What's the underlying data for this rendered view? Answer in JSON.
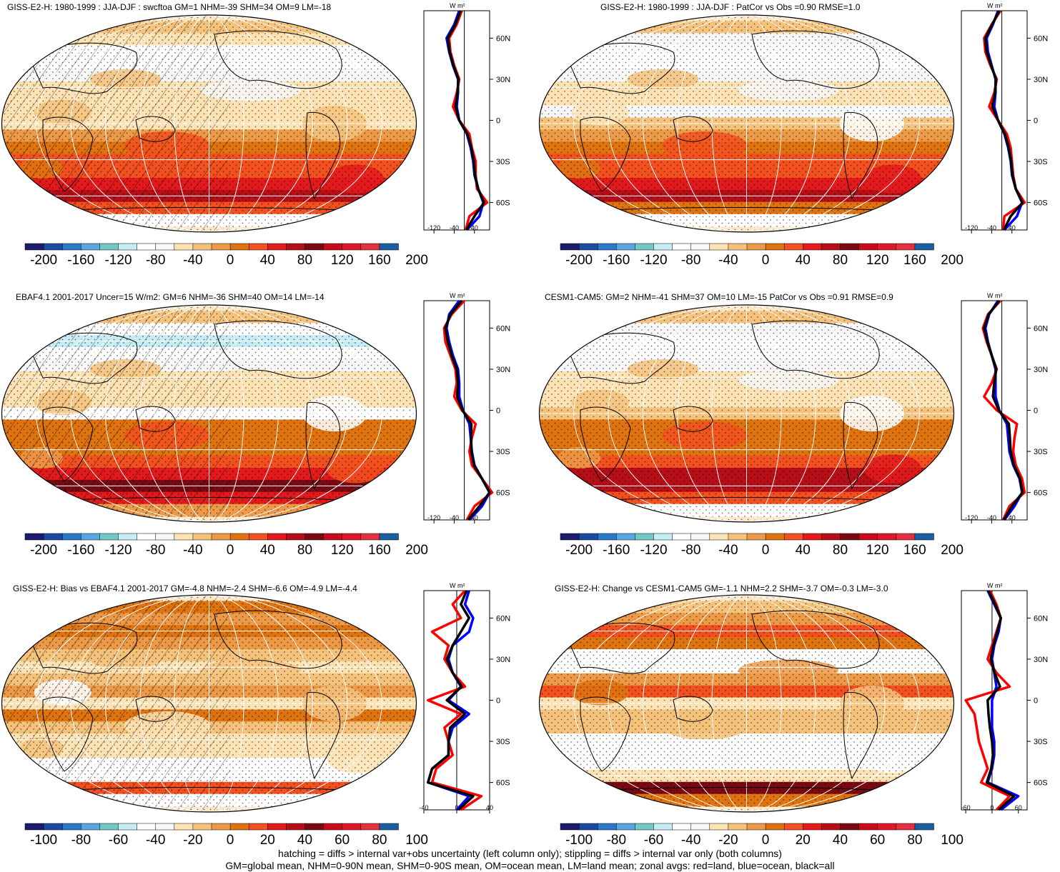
{
  "palette": [
    "#1b1c6b",
    "#1c4aa0",
    "#2a78c8",
    "#5aa7e0",
    "#74c7c2",
    "#c6ecf6",
    "#ffffff",
    "#f7f7f7",
    "#fde3b3",
    "#f5c27c",
    "#ec9a48",
    "#de7310",
    "#f3501f",
    "#e31a1c",
    "#b70f17",
    "#7a0a12",
    "#c80a1a",
    "#e0162b",
    "#e33040",
    "#1a5fa0"
  ],
  "line_colors": {
    "land": "#ff0000",
    "ocean": "#0000ff",
    "all": "#000000"
  },
  "lat_ticks": [
    "60N",
    "30N",
    "0",
    "30S",
    "60S"
  ],
  "zonal_unit": "W m²",
  "panels": [
    {
      "id": "p1",
      "title": "GISS-E2-H: 1980-1999 : JJA-DJF : swcftoa GM=1 NHM=-39 SHM=34 OM=9 LM=-18",
      "colorbar_labels": [
        "-200",
        "-160",
        "-120",
        "-80",
        "-40",
        "0",
        "40",
        "80",
        "120",
        "160",
        "200"
      ],
      "zonal_xticks": [
        "-120",
        "-40",
        "40"
      ],
      "hatching": true,
      "stippling": true,
      "chart_data": {
        "type": "map+zonal",
        "lat": [
          80,
          70,
          60,
          50,
          40,
          30,
          20,
          10,
          0,
          -10,
          -20,
          -30,
          -40,
          -50,
          -60,
          -70,
          -80
        ],
        "series": [
          {
            "name": "land",
            "values": [
              -10,
              -30,
              -60,
              -55,
              -40,
              -20,
              -30,
              -45,
              -20,
              20,
              30,
              45,
              45,
              50,
              90,
              20,
              5
            ]
          },
          {
            "name": "ocean",
            "values": [
              -20,
              -40,
              -70,
              -60,
              -45,
              -25,
              -25,
              -30,
              -20,
              10,
              25,
              35,
              40,
              55,
              75,
              60,
              10
            ]
          },
          {
            "name": "all",
            "values": [
              -15,
              -35,
              -65,
              -58,
              -43,
              -23,
              -27,
              -35,
              -20,
              12,
              28,
              38,
              42,
              55,
              78,
              40,
              8
            ]
          }
        ],
        "xlim": [
          -160,
          100
        ]
      }
    },
    {
      "id": "p2",
      "title": "GISS-E2-H: 1980-1999 : JJA-DJF : PatCor vs Obs =0.90 RMSE=1.0",
      "colorbar_labels": [
        "-200",
        "-160",
        "-120",
        "-80",
        "-40",
        "0",
        "40",
        "80",
        "120",
        "160",
        "200"
      ],
      "zonal_xticks": [
        "-120",
        "-40",
        "40"
      ],
      "hatching": false,
      "stippling": true,
      "chart_data": {
        "type": "map+zonal",
        "lat": [
          80,
          70,
          60,
          50,
          40,
          30,
          20,
          10,
          0,
          -10,
          -20,
          -30,
          -40,
          -50,
          -60,
          -70,
          -80
        ],
        "series": [
          {
            "name": "land",
            "values": [
              -5,
              -40,
              -70,
              -65,
              -45,
              -20,
              -30,
              -50,
              -15,
              20,
              35,
              40,
              45,
              55,
              90,
              10,
              5
            ]
          },
          {
            "name": "ocean",
            "values": [
              -15,
              -35,
              -60,
              -55,
              -40,
              -25,
              -25,
              -30,
              -15,
              10,
              25,
              35,
              40,
              55,
              80,
              60,
              10
            ]
          },
          {
            "name": "all",
            "values": [
              -10,
              -38,
              -65,
              -60,
              -42,
              -23,
              -27,
              -38,
              -15,
              12,
              28,
              37,
              42,
              55,
              82,
              35,
              8
            ]
          }
        ],
        "xlim": [
          -160,
          100
        ]
      }
    },
    {
      "id": "p3",
      "title": "EBAF4.1 2001-2017 Uncer=15 W/m2: GM=6 NHM=-36 SHM=40 OM=14 LM=-14",
      "colorbar_labels": [
        "-200",
        "-160",
        "-120",
        "-80",
        "-40",
        "0",
        "40",
        "80",
        "120",
        "160",
        "200"
      ],
      "zonal_xticks": [
        "-120",
        "-40",
        "40"
      ],
      "hatching": true,
      "stippling": true,
      "chart_data": {
        "type": "map+zonal",
        "lat": [
          80,
          70,
          60,
          50,
          40,
          30,
          20,
          10,
          0,
          -10,
          -20,
          -30,
          -40,
          -50,
          -60,
          -70,
          -80
        ],
        "series": [
          {
            "name": "land",
            "values": [
              0,
              -50,
              -80,
              -75,
              -55,
              -35,
              -30,
              -40,
              -10,
              45,
              30,
              20,
              30,
              70,
              110,
              40,
              10
            ]
          },
          {
            "name": "ocean",
            "values": [
              -20,
              -60,
              -70,
              -60,
              -45,
              -25,
              -20,
              -20,
              -5,
              20,
              25,
              30,
              40,
              70,
              100,
              70,
              20
            ]
          },
          {
            "name": "all",
            "values": [
              -10,
              -55,
              -75,
              -65,
              -50,
              -30,
              -25,
              -28,
              -7,
              28,
              27,
              28,
              38,
              70,
              100,
              60,
              15
            ]
          }
        ],
        "xlim": [
          -160,
          100
        ]
      }
    },
    {
      "id": "p4",
      "title": "CESM1-CAM5: GM=2 NHM=-41 SHM=37 OM=10 LM=-15 PatCor vs Obs =0.91 RMSE=0.9",
      "colorbar_labels": [
        "-200",
        "-160",
        "-120",
        "-80",
        "-40",
        "0",
        "40",
        "80",
        "120",
        "160",
        "200"
      ],
      "zonal_xticks": [
        "-120",
        "-40",
        "40"
      ],
      "hatching": false,
      "stippling": true,
      "chart_data": {
        "type": "map+zonal",
        "lat": [
          80,
          70,
          60,
          50,
          40,
          30,
          20,
          10,
          0,
          -10,
          -20,
          -30,
          -40,
          -50,
          -60,
          -70,
          -80
        ],
        "series": [
          {
            "name": "land",
            "values": [
              -5,
              -55,
              -75,
              -60,
              -40,
              -20,
              -40,
              -70,
              -20,
              60,
              50,
              45,
              55,
              80,
              90,
              30,
              5
            ]
          },
          {
            "name": "ocean",
            "values": [
              -15,
              -50,
              -65,
              -55,
              -40,
              -25,
              -25,
              -25,
              -10,
              20,
              25,
              30,
              45,
              70,
              80,
              50,
              10
            ]
          },
          {
            "name": "all",
            "values": [
              -10,
              -52,
              -70,
              -57,
              -40,
              -22,
              -30,
              -35,
              -12,
              28,
              32,
              35,
              48,
              72,
              82,
              40,
              8
            ]
          }
        ],
        "xlim": [
          -160,
          100
        ]
      }
    },
    {
      "id": "p5",
      "title": "GISS-E2-H: Bias vs EBAF4.1 2001-2017 GM=-4.8 NHM=-2.4 SHM=-6.6 OM=-4.9 LM=-4.4",
      "colorbar_labels": [
        "-100",
        "-80",
        "-60",
        "-40",
        "-20",
        "0",
        "20",
        "40",
        "60",
        "80",
        "100"
      ],
      "zonal_xticks": [
        "-40",
        "0",
        "40"
      ],
      "hatching": true,
      "stippling": true,
      "chart_data": {
        "type": "map+zonal",
        "lat": [
          80,
          70,
          60,
          50,
          40,
          30,
          20,
          10,
          0,
          -10,
          -20,
          -30,
          -40,
          -50,
          -60,
          -70,
          -80
        ],
        "series": [
          {
            "name": "land",
            "values": [
              10,
              -5,
              5,
              -30,
              -10,
              -15,
              -5,
              10,
              -35,
              5,
              -15,
              -10,
              -5,
              -25,
              -30,
              30,
              5
            ]
          },
          {
            "name": "ocean",
            "values": [
              15,
              10,
              20,
              15,
              -5,
              -10,
              -5,
              5,
              -10,
              15,
              -5,
              -10,
              -10,
              -30,
              -35,
              15,
              0
            ]
          },
          {
            "name": "all",
            "values": [
              12,
              5,
              15,
              5,
              -5,
              -12,
              -5,
              6,
              -12,
              10,
              -8,
              -10,
              -10,
              -30,
              -35,
              20,
              2
            ]
          }
        ],
        "xlim": [
          -40,
          40
        ]
      }
    },
    {
      "id": "p6",
      "title": "GISS-E2-H: Change vs CESM1-CAM5 GM=-1.1 NHM=2.2 SHM=-3.7 OM=-0.3 LM=-3.0",
      "colorbar_labels": [
        "-100",
        "-80",
        "-60",
        "-40",
        "-20",
        "0",
        "20",
        "40",
        "60",
        "80",
        "100"
      ],
      "zonal_xticks": [
        "-60",
        "0",
        "60"
      ],
      "hatching": false,
      "stippling": true,
      "chart_data": {
        "type": "map+zonal",
        "lat": [
          80,
          70,
          60,
          50,
          40,
          30,
          20,
          10,
          0,
          -10,
          -20,
          -30,
          -40,
          -50,
          -60,
          -70,
          -80
        ],
        "series": [
          {
            "name": "land",
            "values": [
              -5,
              10,
              20,
              10,
              0,
              -10,
              10,
              40,
              -60,
              -40,
              -35,
              -30,
              -20,
              -10,
              -25,
              40,
              10
            ]
          },
          {
            "name": "ocean",
            "values": [
              -10,
              5,
              20,
              15,
              5,
              0,
              5,
              10,
              0,
              0,
              0,
              5,
              5,
              0,
              -10,
              60,
              20
            ]
          },
          {
            "name": "all",
            "values": [
              -8,
              7,
              20,
              12,
              3,
              -3,
              6,
              18,
              -10,
              -8,
              -5,
              0,
              2,
              -2,
              -12,
              50,
              15
            ]
          }
        ],
        "xlim": [
          -70,
          80
        ]
      }
    }
  ],
  "footnote": {
    "line1": "hatching = diffs > internal var+obs uncertainty (left column only); stippling = diffs > internal var only (both columns)",
    "line2": "GM=global mean, NHM=0-90N mean, SHM=0-90S mean, OM=ocean mean, LM=land mean; zonal avgs: red=land, blue=ocean, black=all"
  }
}
